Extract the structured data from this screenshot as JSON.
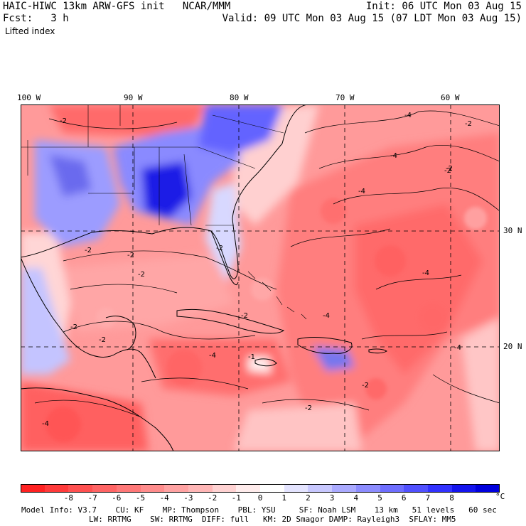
{
  "header": {
    "line1_left": "HAIC-HIWC 13km ARW-GFS init   NCAR/MMM",
    "line1_right": "Init: 06 UTC Mon 03 Aug 15",
    "line2_left": "Fcst:   3 h",
    "line2_right": "Valid: 09 UTC Mon 03 Aug 15 (07 LDT Mon 03 Aug 15)",
    "field_name": "Lifted index"
  },
  "map": {
    "lon_labels": [
      "100 W",
      "90 W",
      "80 W",
      "70 W",
      "60 W"
    ],
    "lat_labels": [
      "30 N",
      "20 N"
    ],
    "contour_labels": [
      "-2",
      "-4",
      "-2",
      "-4",
      "-2",
      "-4",
      "-2",
      "-2",
      "-2",
      "-2",
      "-2",
      "-4",
      "-4",
      "-1",
      "-2",
      "-4",
      "-2",
      "-2",
      "-4",
      "-4",
      "-2",
      "-2"
    ]
  },
  "colorbar": {
    "unit": "°C",
    "tick_labels": [
      "-8",
      "-7",
      "-6",
      "-5",
      "-4",
      "-3",
      "-2",
      "-1",
      "0",
      "1",
      "2",
      "3",
      "4",
      "5",
      "6",
      "7",
      "8"
    ],
    "colors": [
      "#ff2222",
      "#ff3a3a",
      "#ff5050",
      "#ff6464",
      "#ff7878",
      "#ff8c8c",
      "#ffa2a2",
      "#ffb6b6",
      "#ffd2d2",
      "#ffecec",
      "#ffffff",
      "#e4e4ff",
      "#c8c8ff",
      "#aaaaff",
      "#8c8cff",
      "#6e6eff",
      "#5050ff",
      "#3232ff",
      "#1414ee",
      "#0000dd"
    ]
  },
  "model_info": {
    "line1": "Model Info: V3.7    CU: KF    MP: Thompson    PBL: YSU     SF: Noah LSM    13 km   51 levels   60 sec",
    "line2": "LW: RRTMG    SW: RRTMG  DIFF: full   KM: 2D Smagor DAMP: Rayleigh3  SFLAY: MM5"
  }
}
